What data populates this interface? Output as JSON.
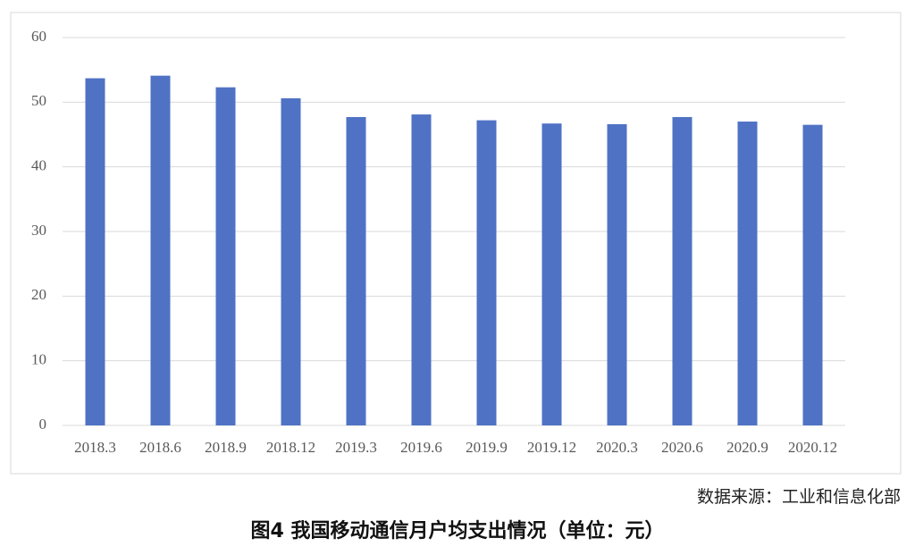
{
  "chart_data": {
    "type": "bar",
    "title": "图4 我国移动通信月户均支出情况（单位：元）",
    "source": "数据来源：工业和信息化部",
    "categories": [
      "2018.3",
      "2018.6",
      "2018.9",
      "2018.12",
      "2019.3",
      "2019.6",
      "2019.9",
      "2019.12",
      "2020.3",
      "2020.6",
      "2020.9",
      "2020.12"
    ],
    "values": [
      53.7,
      54.1,
      52.3,
      50.6,
      47.7,
      48.1,
      47.2,
      46.7,
      46.6,
      47.7,
      47.0,
      46.5
    ],
    "color": "#4f72c4",
    "ylim": [
      0,
      60
    ],
    "yticks": [
      0,
      10,
      20,
      30,
      40,
      50,
      60
    ],
    "grid": true
  }
}
